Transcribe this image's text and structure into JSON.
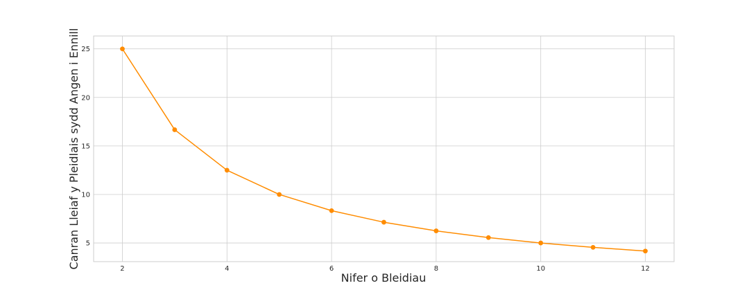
{
  "chart_data": {
    "type": "line",
    "title": "",
    "xlabel": "Nifer o Bleidiau",
    "ylabel": "Canran Lleiaf y Pleidlais sydd Angen i Ennill",
    "xlim": [
      1.45,
      12.55
    ],
    "ylim": [
      3.08,
      26.33
    ],
    "xticks": [
      2,
      4,
      6,
      8,
      10,
      12
    ],
    "yticks": [
      5,
      10,
      15,
      20,
      25
    ],
    "grid": true,
    "legend": "none",
    "series": [
      {
        "color": "#ff8c00",
        "marker": "circle",
        "x": [
          2,
          3,
          4,
          5,
          6,
          7,
          8,
          9,
          10,
          11,
          12
        ],
        "y": [
          25.0,
          16.67,
          12.5,
          10.0,
          8.33,
          7.14,
          6.25,
          5.56,
          5.0,
          4.55,
          4.17
        ]
      }
    ]
  }
}
